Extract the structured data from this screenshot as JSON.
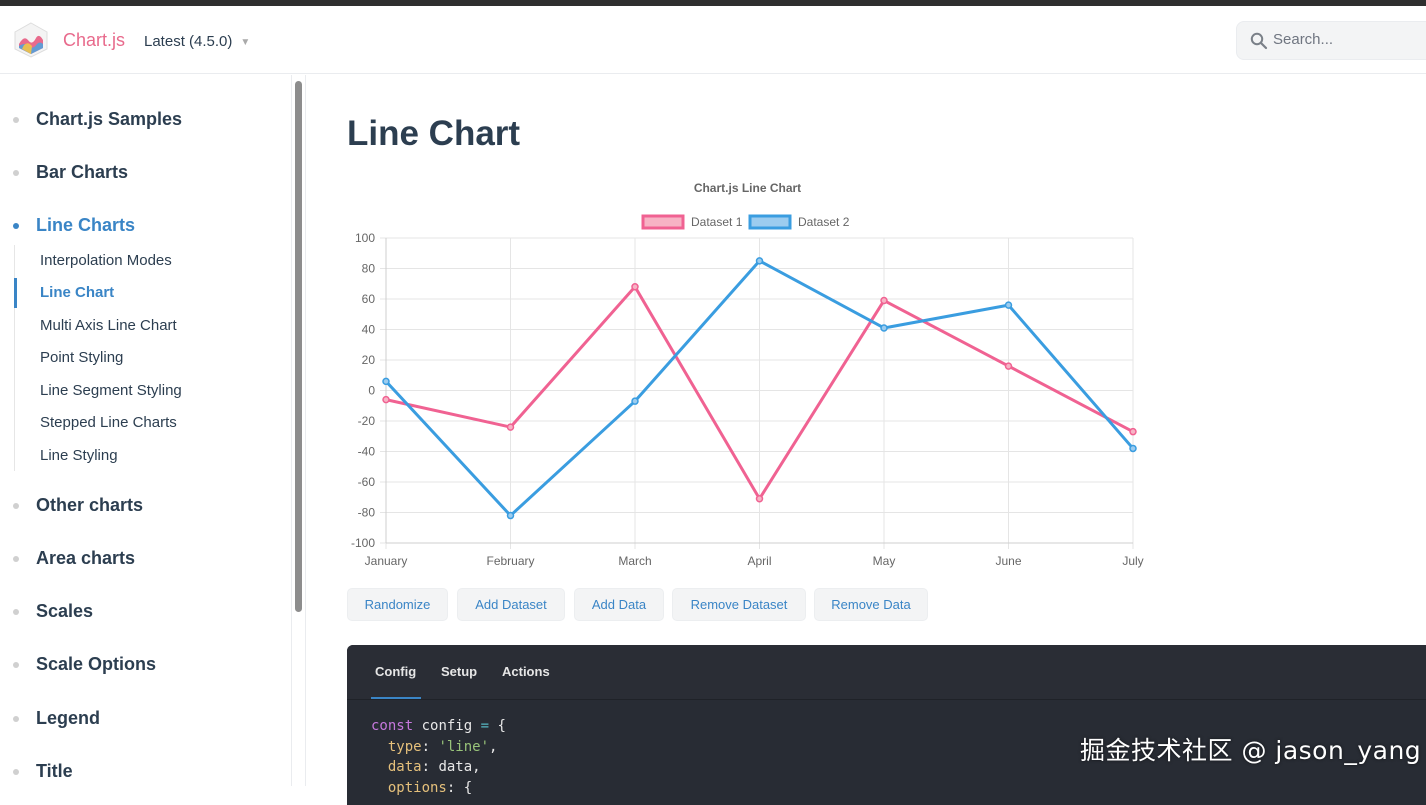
{
  "brand": {
    "name": "Chart.js",
    "version": "Latest (4.5.0)"
  },
  "search": {
    "placeholder": "Search..."
  },
  "sidebar": {
    "sections": [
      {
        "label": "Chart.js Samples"
      },
      {
        "label": "Bar Charts"
      },
      {
        "label": "Line Charts",
        "active": true
      },
      {
        "label": "Other charts"
      },
      {
        "label": "Area charts"
      },
      {
        "label": "Scales"
      },
      {
        "label": "Scale Options"
      },
      {
        "label": "Legend"
      },
      {
        "label": "Title"
      }
    ],
    "line_children": [
      {
        "label": "Interpolation Modes"
      },
      {
        "label": "Line Chart",
        "active": true
      },
      {
        "label": "Multi Axis Line Chart"
      },
      {
        "label": "Point Styling"
      },
      {
        "label": "Line Segment Styling"
      },
      {
        "label": "Stepped Line Charts"
      },
      {
        "label": "Line Styling"
      }
    ]
  },
  "page": {
    "title": "Line Chart"
  },
  "chart_data": {
    "type": "line",
    "title": "Chart.js Line Chart",
    "categories": [
      "January",
      "February",
      "March",
      "April",
      "May",
      "June",
      "July"
    ],
    "ylim": [
      -100,
      100
    ],
    "yticks": [
      "100",
      "80",
      "60",
      "40",
      "20",
      "0",
      "-20",
      "-40",
      "-60",
      "-80",
      "-100"
    ],
    "grid": true,
    "legend_position": "top",
    "series": [
      {
        "name": "Dataset 1",
        "color": "#f06292",
        "fill": "#f7b3c5",
        "values": [
          -6,
          -24,
          68,
          -71,
          59,
          16,
          -27
        ]
      },
      {
        "name": "Dataset 2",
        "color": "#3a9de0",
        "fill": "#9cccef",
        "values": [
          6,
          -82,
          -7,
          85,
          41,
          56,
          -38
        ]
      }
    ]
  },
  "actions": {
    "randomize": "Randomize",
    "add_dataset": "Add Dataset",
    "add_data": "Add Data",
    "remove_dataset": "Remove Dataset",
    "remove_data": "Remove Data"
  },
  "code_tabs": {
    "config": "Config",
    "setup": "Setup",
    "actions": "Actions"
  },
  "code": {
    "l1_kw": "const",
    "l1_name": "config",
    "l1_op": "=",
    "l1_brace": "{",
    "l2_prop": "type",
    "l2_str": "'line'",
    "l3_prop": "data",
    "l3_val": "data",
    "l4_prop": "options",
    "l4_brace": "{"
  },
  "watermark": "掘金技术社区 @ jason_yang"
}
